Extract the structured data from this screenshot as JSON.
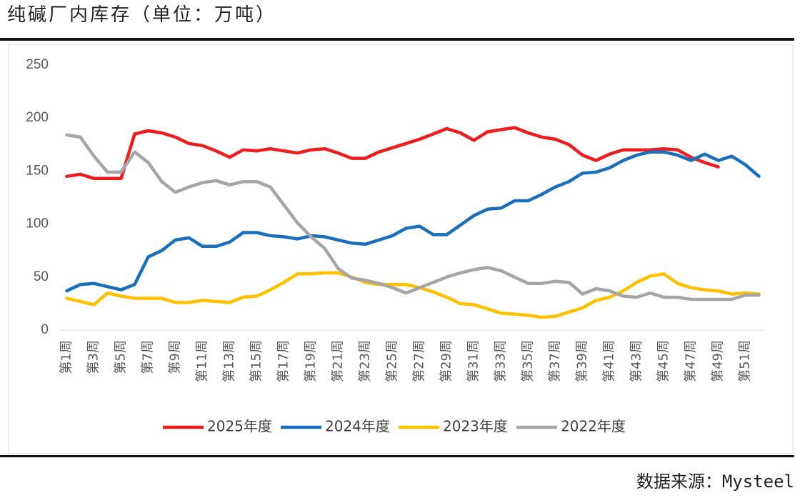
{
  "chart_data": {
    "type": "line",
    "title": "纯碱厂内库存（单位：万吨）",
    "source": "数据来源：Mysteel",
    "categories": [
      "第1周",
      null,
      "第3周",
      null,
      "第5周",
      null,
      "第7周",
      null,
      "第9周",
      null,
      "第11周",
      null,
      "第13周",
      null,
      "第15周",
      null,
      "第17周",
      null,
      "第19周",
      null,
      "第21周",
      null,
      "第23周",
      null,
      "第25周",
      null,
      "第27周",
      null,
      "第29周",
      null,
      "第31周",
      null,
      "第33周",
      null,
      "第35周",
      null,
      "第37周",
      null,
      "第39周",
      null,
      "第41周",
      null,
      "第43周",
      null,
      "第45周",
      null,
      "第47周",
      null,
      "第49周",
      null,
      "第51周",
      null
    ],
    "ylim": [
      0,
      250
    ],
    "yticks": [
      0,
      50,
      100,
      150,
      200,
      250
    ],
    "grid": false,
    "legend": "bottom",
    "series": [
      {
        "name": "2025年度",
        "color": "#ee1c1c",
        "values": [
          145,
          147,
          143,
          143,
          143,
          185,
          188,
          186,
          182,
          176,
          174,
          169,
          163,
          170,
          169,
          171,
          169,
          167,
          170,
          171,
          167,
          162,
          162,
          168,
          172,
          176,
          180,
          185,
          190,
          186,
          179,
          187,
          189,
          191,
          186,
          182,
          180,
          175,
          165,
          160,
          166,
          170,
          170,
          170,
          171,
          170,
          163,
          158,
          154,
          null,
          null,
          null
        ]
      },
      {
        "name": "2024年度",
        "color": "#1a6fbd",
        "values": [
          37,
          43,
          44,
          41,
          38,
          43,
          69,
          75,
          85,
          87,
          79,
          79,
          83,
          92,
          92,
          89,
          88,
          86,
          89,
          88,
          85,
          82,
          81,
          85,
          89,
          96,
          98,
          90,
          90,
          99,
          108,
          114,
          115,
          122,
          122,
          128,
          135,
          140,
          148,
          149,
          153,
          160,
          165,
          168,
          168,
          165,
          160,
          166,
          160,
          164,
          156,
          145
        ]
      },
      {
        "name": "2023年度",
        "color": "#ffc000",
        "values": [
          30,
          27,
          24,
          35,
          32,
          30,
          30,
          30,
          26,
          26,
          28,
          27,
          26,
          31,
          32,
          38,
          45,
          53,
          53,
          54,
          54,
          50,
          45,
          43,
          43,
          43,
          40,
          36,
          31,
          25,
          24,
          20,
          16,
          15,
          14,
          12,
          13,
          17,
          21,
          28,
          31,
          37,
          45,
          51,
          53,
          44,
          40,
          38,
          37,
          34,
          35,
          34
        ]
      },
      {
        "name": "2022年度",
        "color": "#a5a5a5",
        "values": [
          184,
          182,
          164,
          149,
          149,
          168,
          158,
          140,
          130,
          135,
          139,
          141,
          137,
          140,
          140,
          135,
          118,
          101,
          88,
          77,
          58,
          49,
          47,
          44,
          40,
          35,
          40,
          45,
          50,
          54,
          57,
          59,
          56,
          50,
          44,
          44,
          46,
          45,
          34,
          39,
          37,
          32,
          31,
          35,
          31,
          31,
          29,
          29,
          29,
          29,
          33,
          33
        ]
      }
    ]
  }
}
